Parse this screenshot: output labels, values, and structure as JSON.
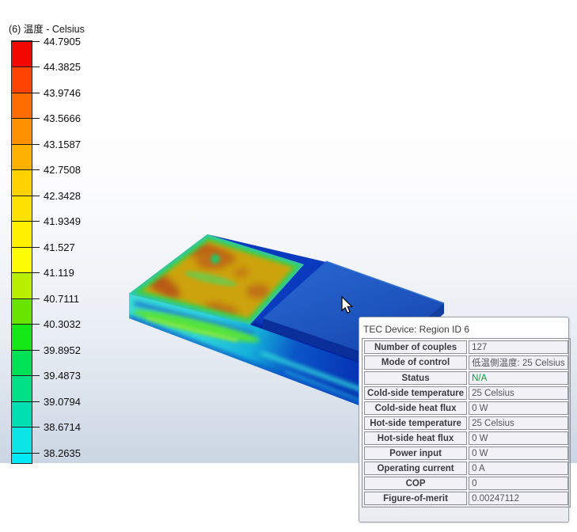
{
  "legend": {
    "title": "(6) 温度 - Celsius",
    "unit": "Celsius",
    "ticks": [
      "44.7905",
      "44.3825",
      "43.9746",
      "43.5666",
      "43.1587",
      "42.7508",
      "42.3428",
      "41.9349",
      "41.527",
      "41.119",
      "40.7111",
      "40.3032",
      "39.8952",
      "39.4873",
      "39.0794",
      "38.6714",
      "38.2635"
    ],
    "segment_colors": [
      "#F20800",
      "#FF4300",
      "#FF6C00",
      "#FF9000",
      "#FFB100",
      "#FFD200",
      "#FFE100",
      "#FFF000",
      "#FFFD05",
      "#B8F000",
      "#68E400",
      "#15E615",
      "#00E256",
      "#00E087",
      "#00DFB2",
      "#0BE5E5",
      "#00E9F7"
    ]
  },
  "tooltip": {
    "title": "TEC Device: Region ID 6",
    "status_color": "#0E9C40",
    "rows": [
      {
        "label": "Number of couples",
        "value": "127"
      },
      {
        "label": "Mode of control",
        "value": "低温側温度: 25 Celsius"
      },
      {
        "label": "Status",
        "value": "N/A",
        "value_color": "#0E9C40"
      },
      {
        "label": "Cold-side temperature",
        "value": "25 Celsius"
      },
      {
        "label": "Cold-side heat flux",
        "value": "0 W"
      },
      {
        "label": "Hot-side temperature",
        "value": "25 Celsius"
      },
      {
        "label": "Hot-side heat flux",
        "value": "0 W"
      },
      {
        "label": "Power input",
        "value": "0 W"
      },
      {
        "label": "Operating current",
        "value": "0 A"
      },
      {
        "label": "COP",
        "value": "0"
      },
      {
        "label": "Figure-of-merit",
        "value": "0.00247112"
      }
    ]
  },
  "scene": {
    "description": "3D thermal plot: base plate with TEC temperature contour (cold side) and blue component block",
    "colors": {
      "plate_top": "#0A3BBE",
      "plate_front_edge_band": "#01209F",
      "contour_base": "#CCA30D",
      "contour_hot_blotch": "#BD6212",
      "contour_rim_green": "#3FCE45",
      "contour_rim_teal": "#2FC8AC",
      "block_top": "#1B53BD",
      "block_left": "#0B2F9A",
      "block_right": "#123E9F",
      "viewport_bottom": "#CBD6E3"
    }
  }
}
